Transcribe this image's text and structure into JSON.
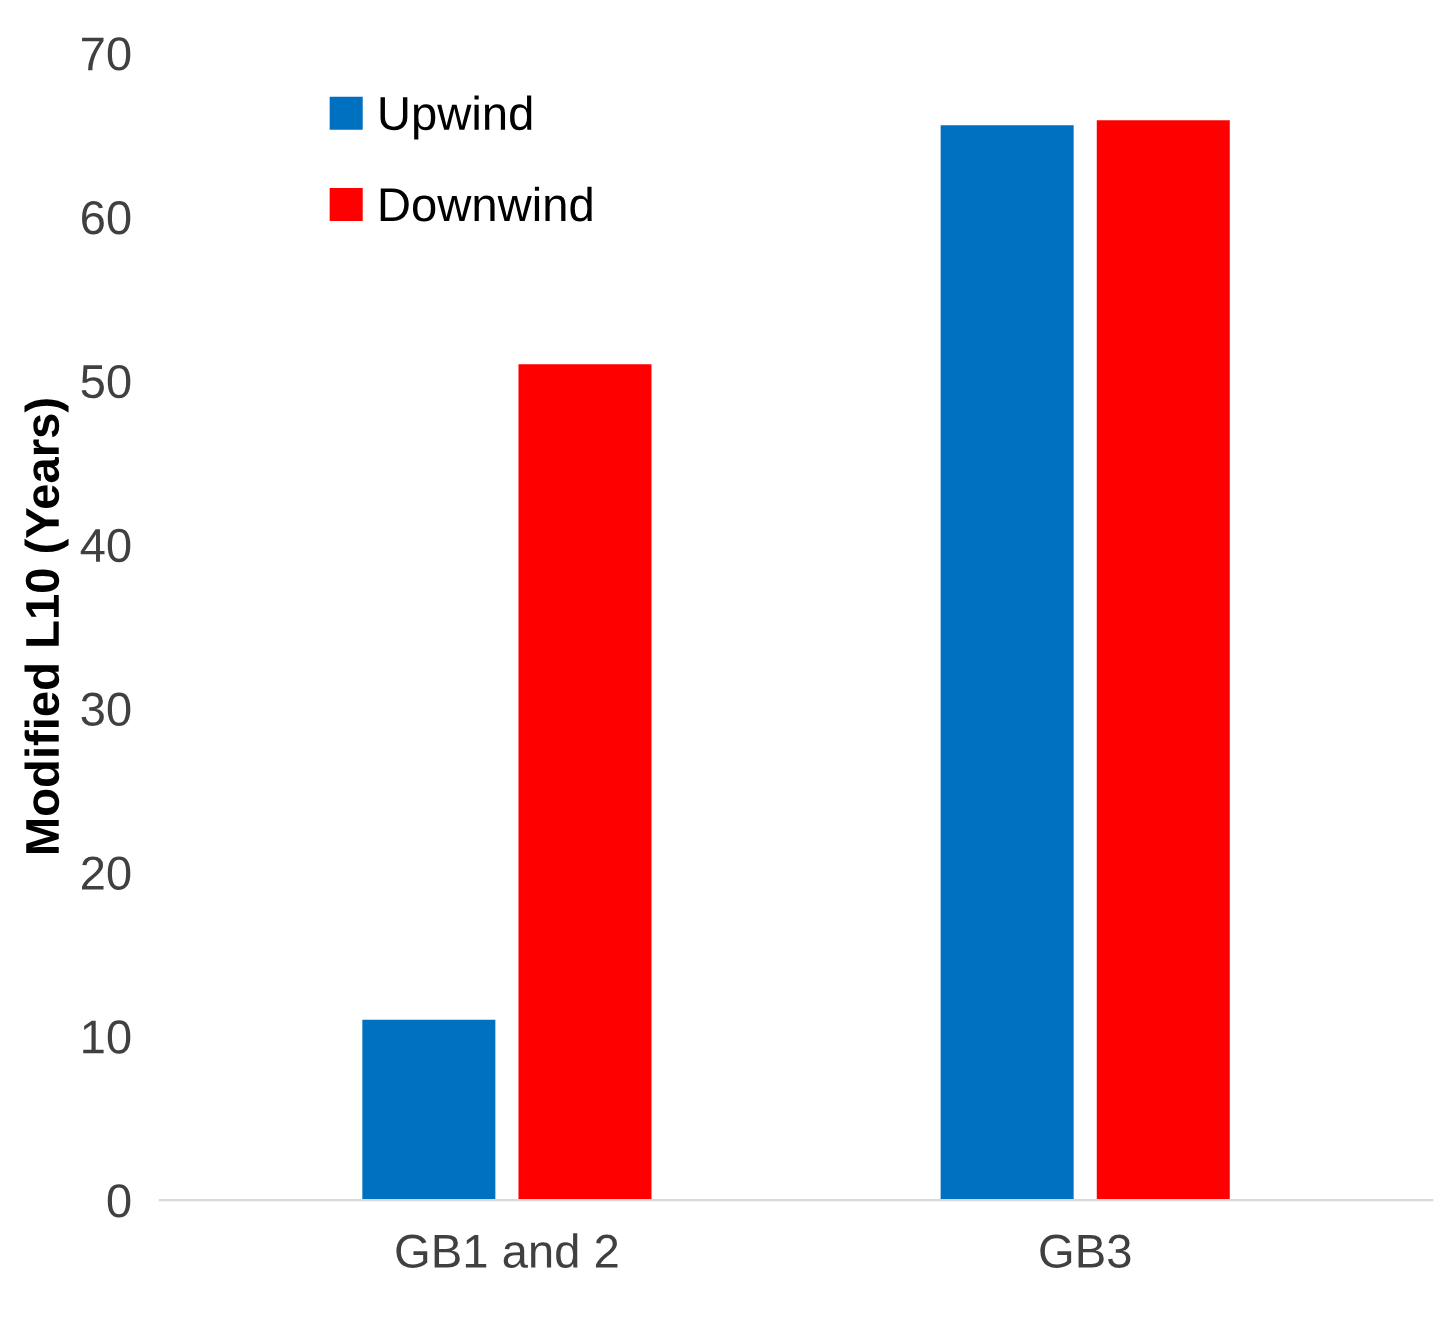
{
  "chart_data": {
    "type": "bar",
    "ylabel": "Modified L10 (Years)",
    "categories": [
      "GB1 and 2",
      "GB3"
    ],
    "series": [
      {
        "name": "Upwind",
        "color": "#0070c0",
        "values": [
          11,
          65.6
        ]
      },
      {
        "name": "Downwind",
        "color": "#ff0000",
        "values": [
          51,
          65.9
        ]
      }
    ],
    "ylim": [
      0,
      70
    ],
    "yticks": [
      0,
      10,
      20,
      30,
      40,
      50,
      60,
      70
    ],
    "grid": false,
    "legend": "top left"
  }
}
